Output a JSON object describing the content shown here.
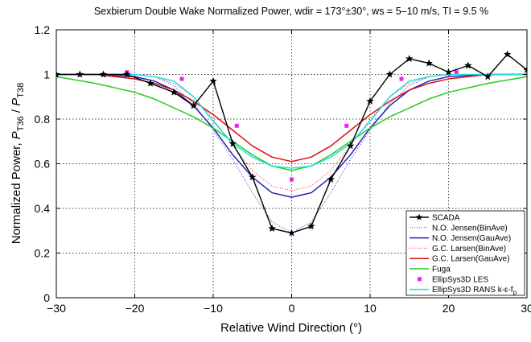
{
  "chart_data": {
    "type": "line",
    "title": "Sexbierum Double Wake Normalized Power, wdir = 173°±30°, ws = 5–10 m/s, TI = 9.5 %",
    "xlabel": "Relative Wind Direction (°)",
    "ylabel": {
      "prefix": "Normalized Power, ",
      "num_var": "P",
      "num_sub": "T36",
      "sep": " / ",
      "den_var": "P",
      "den_sub": "T38"
    },
    "xlim": [
      -30,
      30
    ],
    "ylim": [
      0,
      1.2
    ],
    "xticks": [
      "−30",
      "−20",
      "−10",
      "0",
      "10",
      "20",
      "30"
    ],
    "yticks": [
      "0",
      "0.2",
      "0.4",
      "0.6",
      "0.8",
      "1",
      "1.2"
    ],
    "grid": true,
    "legend_position": "bottom-right",
    "series": [
      {
        "name": "SCADA",
        "style": "line-star",
        "color": "#000000",
        "x": [
          -30,
          -27,
          -24,
          -21,
          -18,
          -15,
          -12.5,
          -10,
          -7.5,
          -5,
          -2.5,
          0,
          2.5,
          5,
          7.5,
          10,
          12.5,
          15,
          17.5,
          20,
          22.5,
          25,
          27.5,
          30
        ],
        "y": [
          1.0,
          1.0,
          1.0,
          1.0,
          0.96,
          0.92,
          0.86,
          0.97,
          0.69,
          0.54,
          0.31,
          0.29,
          0.32,
          0.53,
          0.68,
          0.88,
          1.0,
          1.07,
          1.05,
          1.01,
          1.04,
          0.99,
          1.09,
          1.02
        ]
      },
      {
        "name": "N.O. Jensen(BinAve)",
        "style": "dotted",
        "color": "#3333cc",
        "x": [
          -30,
          -25,
          -20,
          -17.5,
          -15,
          -12.5,
          -10,
          -7.5,
          -5,
          -2.5,
          0,
          2.5,
          5,
          7.5,
          10,
          12.5,
          15,
          17.5,
          20,
          25,
          30
        ],
        "y": [
          1.0,
          1.0,
          1.0,
          0.99,
          0.95,
          0.87,
          0.75,
          0.62,
          0.47,
          0.34,
          0.29,
          0.34,
          0.47,
          0.62,
          0.75,
          0.87,
          0.95,
          0.99,
          1.0,
          1.0,
          1.0
        ]
      },
      {
        "name": "N.O. Jensen(GauAve)",
        "style": "solid",
        "color": "#2222bb",
        "x": [
          -30,
          -25,
          -20,
          -17.5,
          -15,
          -12.5,
          -10,
          -7.5,
          -5,
          -2.5,
          0,
          2.5,
          5,
          7.5,
          10,
          12.5,
          15,
          17.5,
          20,
          25,
          30
        ],
        "y": [
          1.0,
          1.0,
          0.99,
          0.97,
          0.93,
          0.86,
          0.76,
          0.64,
          0.54,
          0.47,
          0.45,
          0.47,
          0.54,
          0.64,
          0.76,
          0.86,
          0.93,
          0.97,
          0.99,
          1.0,
          1.0
        ]
      },
      {
        "name": "G.C. Larsen(BinAve)",
        "style": "dotted",
        "color": "#dd3333",
        "x": [
          -30,
          -25,
          -20,
          -17.5,
          -15,
          -12.5,
          -10,
          -7.5,
          -5,
          -2.5,
          0,
          2.5,
          5,
          7.5,
          10,
          12.5,
          15,
          17.5,
          20,
          25,
          30
        ],
        "y": [
          1.0,
          1.0,
          1.0,
          0.99,
          0.96,
          0.9,
          0.8,
          0.68,
          0.57,
          0.5,
          0.48,
          0.5,
          0.57,
          0.68,
          0.8,
          0.9,
          0.96,
          0.99,
          1.0,
          1.0,
          1.0
        ]
      },
      {
        "name": "G.C. Larsen(GauAve)",
        "style": "solid",
        "color": "#dd1111",
        "x": [
          -30,
          -25,
          -20,
          -17.5,
          -15,
          -12.5,
          -10,
          -7.5,
          -5,
          -2.5,
          0,
          2.5,
          5,
          7.5,
          10,
          12.5,
          15,
          17.5,
          20,
          25,
          30
        ],
        "y": [
          1.0,
          1.0,
          0.98,
          0.96,
          0.93,
          0.88,
          0.82,
          0.75,
          0.68,
          0.63,
          0.61,
          0.63,
          0.68,
          0.75,
          0.82,
          0.88,
          0.93,
          0.96,
          0.98,
          1.0,
          1.0
        ]
      },
      {
        "name": "Fuga",
        "style": "solid",
        "color": "#22cc22",
        "x": [
          -30,
          -25,
          -20,
          -17.5,
          -15,
          -12.5,
          -10,
          -7.5,
          -5,
          -2.5,
          0,
          2.5,
          5,
          7.5,
          10,
          12.5,
          15,
          17.5,
          20,
          25,
          30
        ],
        "y": [
          0.99,
          0.96,
          0.92,
          0.89,
          0.85,
          0.81,
          0.76,
          0.7,
          0.64,
          0.59,
          0.57,
          0.59,
          0.64,
          0.7,
          0.76,
          0.81,
          0.85,
          0.89,
          0.92,
          0.96,
          0.99
        ]
      },
      {
        "name": "EllipSys3D LES",
        "style": "markers",
        "color": "#ee22ee",
        "x": [
          -21,
          -14,
          -7,
          0,
          7,
          14,
          21
        ],
        "y": [
          1.01,
          0.98,
          0.77,
          0.53,
          0.77,
          0.98,
          1.01
        ]
      },
      {
        "name": "EllipSys3D RANS k-ε-f",
        "name_sub": "p",
        "style": "solid",
        "color": "#22dddd",
        "x": [
          -30,
          -25,
          -20,
          -17.5,
          -15,
          -12.5,
          -10,
          -7.5,
          -5,
          -2.5,
          0,
          2.5,
          5,
          7.5,
          10,
          12.5,
          15,
          17.5,
          20,
          25,
          30
        ],
        "y": [
          1.0,
          1.0,
          1.0,
          0.99,
          0.97,
          0.9,
          0.79,
          0.69,
          0.63,
          0.59,
          0.58,
          0.59,
          0.63,
          0.69,
          0.79,
          0.9,
          0.97,
          0.99,
          1.0,
          1.0,
          1.0
        ]
      }
    ]
  }
}
